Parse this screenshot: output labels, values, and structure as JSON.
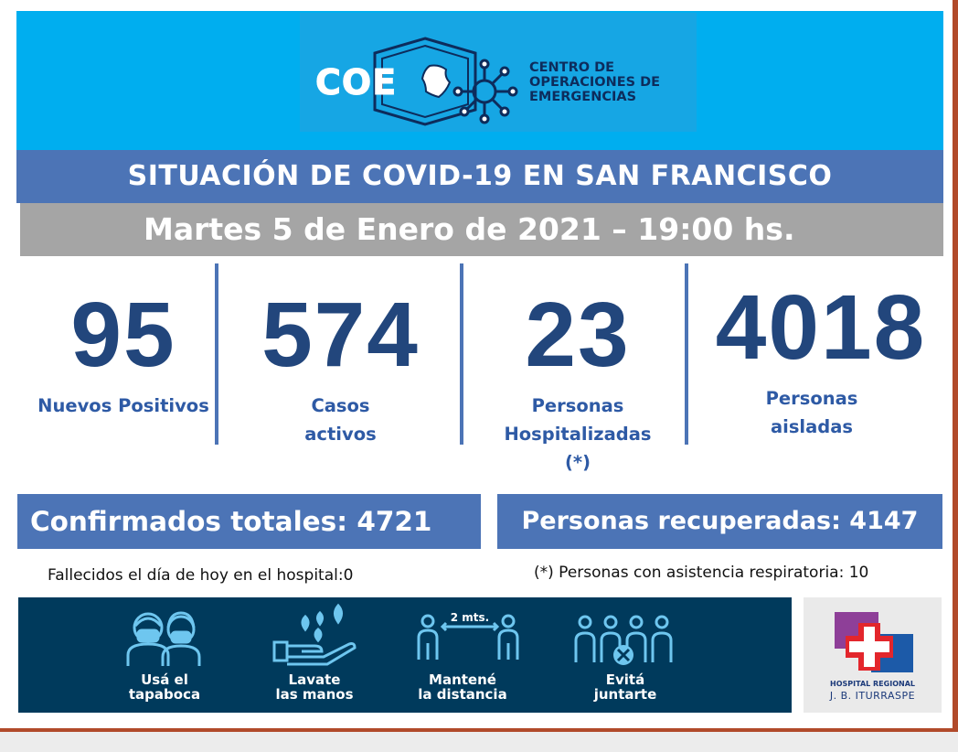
{
  "header": {
    "logo_abbr": "COE",
    "org_lines": [
      "CENTRO DE",
      "OPERACIONES DE",
      "EMERGENCIAS"
    ]
  },
  "title": "SITUACIÓN DE COVID-19 EN SAN FRANCISCO",
  "date": "Martes 5 de Enero de 2021 – 19:00 hs.",
  "stats": [
    {
      "value": "95",
      "label_lines": [
        "Nuevos Positivos"
      ]
    },
    {
      "value": "574",
      "label_lines": [
        "Casos",
        "activos"
      ]
    },
    {
      "value": "23",
      "label_lines": [
        "Personas",
        "Hospitalizadas",
        "(*)"
      ]
    },
    {
      "value": "4018",
      "label_lines": [
        "Personas",
        "aisladas"
      ]
    }
  ],
  "totals": {
    "confirmed": "Confirmados totales: 4721",
    "recovered": "Personas recuperadas: 4147"
  },
  "notes": {
    "deaths": "Fallecidos el día de hoy en el hospital:0",
    "respiratory": "(*) Personas con asistencia respiratoria: 10"
  },
  "prevention": {
    "distance_label": "2 mts.",
    "tips": [
      {
        "icon": "mask-icon",
        "lines": [
          "Usá el",
          "tapaboca"
        ]
      },
      {
        "icon": "hand-wash-icon",
        "lines": [
          "Lavate",
          "las manos"
        ]
      },
      {
        "icon": "distance-icon",
        "lines": [
          "Mantené",
          "la distancia"
        ]
      },
      {
        "icon": "group-avoid-icon",
        "lines": [
          "Evitá",
          "juntarte"
        ]
      }
    ]
  },
  "hospital": {
    "line1": "HOSPITAL REGIONAL",
    "line2": "J. B. ITURRASPE"
  },
  "colors": {
    "header_blue": "#00aeef",
    "bar_blue": "#4c74b6",
    "number_navy": "#22467c",
    "label_blue": "#2e5aa5",
    "banner_navy": "#003a5c"
  }
}
